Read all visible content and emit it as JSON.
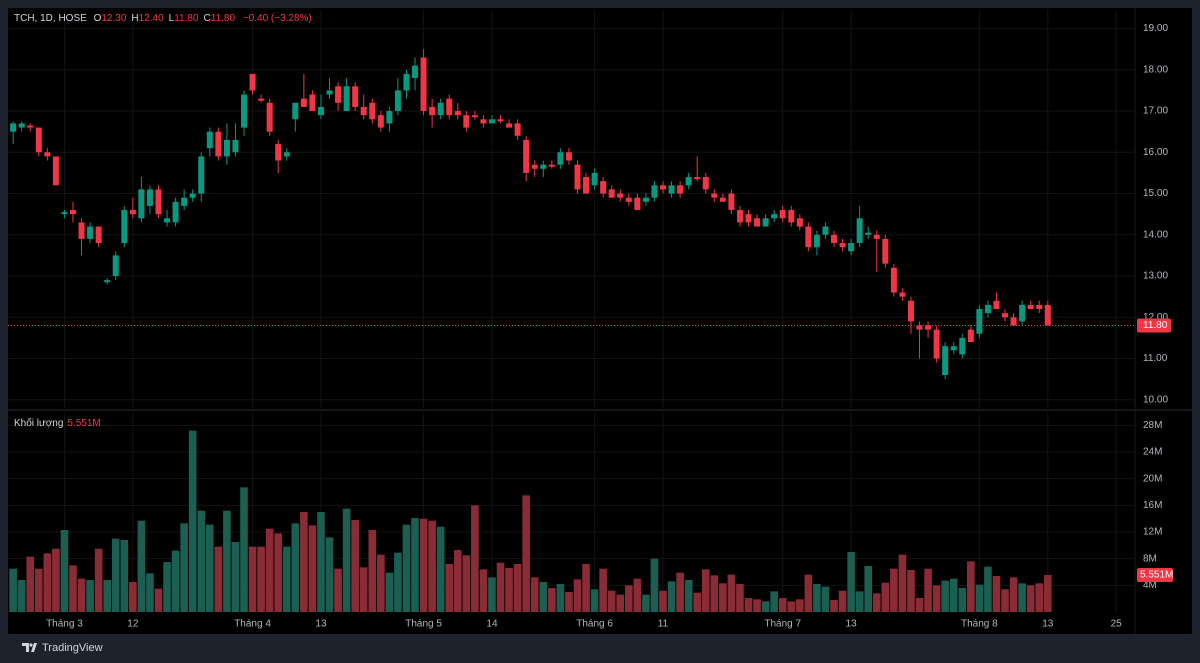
{
  "chart_data": {
    "type": "candlestick",
    "symbol": "TCH, 1D, HOSE",
    "ohlc": [
      {
        "key": "O",
        "text": "12.30"
      },
      {
        "key": "H",
        "text": "12.40"
      },
      {
        "key": "L",
        "text": "11.80"
      },
      {
        "key": "C",
        "text": "11.80"
      }
    ],
    "change": "−0.40 (−3.28%)",
    "up_color": "#089981",
    "down_color": "#f23645",
    "volume_up_color": "#1b5e52",
    "volume_down_color": "#8a2c35",
    "open": [
      16.5,
      16.6,
      16.65,
      16.6,
      16.0,
      15.9,
      14.5,
      14.6,
      14.3,
      13.9,
      14.2,
      12.85,
      13.0,
      13.8,
      14.6,
      14.4,
      14.7,
      15.1,
      14.3,
      14.3,
      14.7,
      14.9,
      15.0,
      16.1,
      16.5,
      15.9,
      16.0,
      16.6,
      17.9,
      17.3,
      17.2,
      16.2,
      15.9,
      16.8,
      17.3,
      17.4,
      16.9,
      17.4,
      17.6,
      17.0,
      17.6,
      17.1,
      17.2,
      16.9,
      16.7,
      17.0,
      17.5,
      17.8,
      18.3,
      17.1,
      16.9,
      17.3,
      17.0,
      16.9,
      16.9,
      16.8,
      16.7,
      16.8,
      16.7,
      16.7,
      16.3,
      15.7,
      15.6,
      15.7,
      15.7,
      16.0,
      15.7,
      15.4,
      15.2,
      15.3,
      15.1,
      15.0,
      14.9,
      14.9,
      14.8,
      14.9,
      15.2,
      15.0,
      15.2,
      15.2,
      15.4,
      15.4,
      15.0,
      14.9,
      15.0,
      14.6,
      14.5,
      14.4,
      14.2,
      14.4,
      14.6,
      14.6,
      14.4,
      14.2,
      13.7,
      14.0,
      14.0,
      13.8,
      13.6,
      13.8,
      14.0,
      14.0,
      13.9,
      13.2,
      12.6,
      12.4,
      11.8,
      11.8,
      11.7,
      10.6,
      11.2,
      11.1,
      11.7,
      11.6,
      12.1,
      12.4,
      12.1,
      12.0,
      11.9,
      12.3,
      12.3,
      12.3
    ],
    "high": [
      16.75,
      16.75,
      16.7,
      16.6,
      16.1,
      15.9,
      14.6,
      14.8,
      14.4,
      14.3,
      14.2,
      12.95,
      13.6,
      14.7,
      14.9,
      15.4,
      15.2,
      15.2,
      14.6,
      14.9,
      15.1,
      15.1,
      16.0,
      16.6,
      16.6,
      16.7,
      16.7,
      17.5,
      17.9,
      17.4,
      17.3,
      16.3,
      16.1,
      17.2,
      17.9,
      17.5,
      17.4,
      17.8,
      17.7,
      17.8,
      17.7,
      17.4,
      17.3,
      17.0,
      17.1,
      17.8,
      18.0,
      18.3,
      18.5,
      17.3,
      17.3,
      17.4,
      17.2,
      17.0,
      17.0,
      16.9,
      16.9,
      16.9,
      16.8,
      16.8,
      16.4,
      15.8,
      15.8,
      15.8,
      16.1,
      16.1,
      15.8,
      15.5,
      15.6,
      15.4,
      15.2,
      15.1,
      15.0,
      15.0,
      15.0,
      15.3,
      15.3,
      15.3,
      15.3,
      15.5,
      15.9,
      15.5,
      15.1,
      15.0,
      15.1,
      14.7,
      14.6,
      14.5,
      14.5,
      14.6,
      14.7,
      14.7,
      14.5,
      14.3,
      14.1,
      14.3,
      14.1,
      13.9,
      13.9,
      14.7,
      14.2,
      14.1,
      14.0,
      13.3,
      12.7,
      12.5,
      11.9,
      11.9,
      11.8,
      11.4,
      11.4,
      11.6,
      11.8,
      12.3,
      12.4,
      12.6,
      12.2,
      12.1,
      12.4,
      12.4,
      12.4,
      12.4
    ],
    "low": [
      16.2,
      16.5,
      16.5,
      15.9,
      15.8,
      15.2,
      14.4,
      14.3,
      13.5,
      13.8,
      13.7,
      12.8,
      12.9,
      13.7,
      14.4,
      14.3,
      14.5,
      14.4,
      14.2,
      14.2,
      14.6,
      14.8,
      14.8,
      15.9,
      15.8,
      15.7,
      15.9,
      16.4,
      17.4,
      17.2,
      16.4,
      15.5,
      15.8,
      16.5,
      17.1,
      17.0,
      16.8,
      17.3,
      17.0,
      17.0,
      17.0,
      16.8,
      16.7,
      16.5,
      16.5,
      16.9,
      17.3,
      17.5,
      16.9,
      16.6,
      16.8,
      16.8,
      16.8,
      16.5,
      16.8,
      16.6,
      16.7,
      16.7,
      16.6,
      16.3,
      15.3,
      15.4,
      15.4,
      15.6,
      15.6,
      15.7,
      15.0,
      15.0,
      15.1,
      14.9,
      14.9,
      14.8,
      14.7,
      14.6,
      14.7,
      14.8,
      15.0,
      14.9,
      14.9,
      15.1,
      15.3,
      15.0,
      14.8,
      14.8,
      14.5,
      14.2,
      14.2,
      14.2,
      14.2,
      14.3,
      14.3,
      14.2,
      14.1,
      13.6,
      13.5,
      13.9,
      13.7,
      13.6,
      13.5,
      13.7,
      13.9,
      13.1,
      13.2,
      12.5,
      12.4,
      11.6,
      11.0,
      11.5,
      10.9,
      10.5,
      11.1,
      11.0,
      11.4,
      11.5,
      12.0,
      12.2,
      11.9,
      11.8,
      11.8,
      12.2,
      12.1,
      11.8
    ],
    "close": [
      16.7,
      16.7,
      16.6,
      16.0,
      15.9,
      15.2,
      14.55,
      14.5,
      13.9,
      14.2,
      13.8,
      12.9,
      13.5,
      14.6,
      14.5,
      15.1,
      15.1,
      14.5,
      14.4,
      14.8,
      14.9,
      15.0,
      15.9,
      16.5,
      15.9,
      16.3,
      16.3,
      17.4,
      17.5,
      17.25,
      16.5,
      15.8,
      16.0,
      17.2,
      17.1,
      17.0,
      17.1,
      17.5,
      17.2,
      17.6,
      17.1,
      16.9,
      16.8,
      16.6,
      17.0,
      17.5,
      17.9,
      18.1,
      17.0,
      16.9,
      17.2,
      16.9,
      16.9,
      16.6,
      16.85,
      16.7,
      16.8,
      16.75,
      16.6,
      16.4,
      15.5,
      15.6,
      15.7,
      15.65,
      16.0,
      15.8,
      15.1,
      15.0,
      15.5,
      15.0,
      14.9,
      14.9,
      14.8,
      14.6,
      14.9,
      15.2,
      15.1,
      15.2,
      15.0,
      15.4,
      15.35,
      15.1,
      14.9,
      14.8,
      14.6,
      14.3,
      14.3,
      14.2,
      14.4,
      14.5,
      14.4,
      14.3,
      14.2,
      13.7,
      14.0,
      14.2,
      13.8,
      13.7,
      13.8,
      14.4,
      14.05,
      13.9,
      13.3,
      12.6,
      12.5,
      11.9,
      11.7,
      11.7,
      11.0,
      11.3,
      11.3,
      11.5,
      11.4,
      12.2,
      12.3,
      12.2,
      12.0,
      11.8,
      12.3,
      12.2,
      12.2,
      11.8
    ],
    "volume": [
      6.5,
      4.8,
      8.3,
      6.5,
      8.8,
      9.5,
      12.3,
      7,
      5,
      4.8,
      9.5,
      4.8,
      11,
      10.8,
      4.5,
      13.7,
      5.8,
      3.5,
      7.5,
      9.2,
      13.3,
      27.2,
      15.2,
      13.1,
      9.8,
      15.2,
      10.5,
      18.7,
      9.8,
      9.8,
      12.5,
      11.8,
      9.8,
      13.3,
      15,
      13,
      15,
      11.2,
      6.5,
      15.5,
      13.8,
      6.7,
      12.3,
      8.6,
      5.9,
      8.9,
      13.1,
      14.1,
      14,
      13.7,
      12.8,
      7.2,
      9.3,
      8.5,
      16,
      6.4,
      5.2,
      7.4,
      6.6,
      7.2,
      17.5,
      5.2,
      4.5,
      3.6,
      4.2,
      3,
      4.9,
      7.2,
      3.4,
      6.5,
      3.2,
      2.6,
      4,
      5,
      2.6,
      8,
      3.2,
      4.6,
      5.9,
      4.8,
      2.9,
      6.4,
      5.5,
      4.3,
      5.6,
      4.2,
      2.1,
      1.9,
      1.6,
      3.1,
      2.1,
      1.6,
      1.9,
      5.6,
      4.2,
      3.8,
      1.8,
      3.2,
      9,
      3.1,
      6.9,
      2.8,
      4.4,
      6.5,
      8.6,
      6.3,
      2.1,
      6.5,
      4,
      4.7,
      5,
      3.6,
      7.6,
      4.1,
      6.8,
      5.4,
      3.4,
      5.2,
      4.3,
      4,
      4.3,
      5.551
    ],
    "xlim": [
      -0.6,
      131.2
    ],
    "xticks": [
      {
        "value": 6,
        "label": "Tháng 3"
      },
      {
        "value": 14,
        "label": "12"
      },
      {
        "value": 28,
        "label": "Tháng 4"
      },
      {
        "value": 36,
        "label": "13"
      },
      {
        "value": 48,
        "label": "Tháng 5"
      },
      {
        "value": 56,
        "label": "14"
      },
      {
        "value": 68,
        "label": "Tháng 6"
      },
      {
        "value": 76,
        "label": "11"
      },
      {
        "value": 90,
        "label": "Tháng 7"
      },
      {
        "value": 98,
        "label": "13"
      },
      {
        "value": 113,
        "label": "Tháng 8"
      },
      {
        "value": 121,
        "label": "13"
      },
      {
        "value": 129,
        "label": "25"
      }
    ],
    "ylim": [
      9.8,
      19.45
    ],
    "yticks": [
      {
        "value": 10,
        "label": "10.00"
      },
      {
        "value": 11,
        "label": "11.00"
      },
      {
        "value": 12,
        "label": "12.00"
      },
      {
        "value": 13,
        "label": "13.00"
      },
      {
        "value": 14,
        "label": "14.00"
      },
      {
        "value": 15,
        "label": "15.00"
      },
      {
        "value": 16,
        "label": "16.00"
      },
      {
        "value": 17,
        "label": "17.00"
      },
      {
        "value": 18,
        "label": "18.00"
      },
      {
        "value": 19,
        "label": "19.00"
      }
    ],
    "last_price": {
      "value": 11.8,
      "label": "11.80"
    },
    "volume_title": "Khối lượng",
    "volume_last": {
      "value": 5.551,
      "label": "5.551M"
    },
    "y2lim": [
      0,
      30
    ],
    "y2ticks": [
      {
        "value": 4,
        "label": "4M"
      },
      {
        "value": 8,
        "label": "8M"
      },
      {
        "value": 12,
        "label": "12M"
      },
      {
        "value": 16,
        "label": "16M"
      },
      {
        "value": 20,
        "label": "20M"
      },
      {
        "value": 24,
        "label": "24M"
      },
      {
        "value": 28,
        "label": "28M"
      }
    ],
    "grid": true,
    "brand": "TradingView"
  }
}
